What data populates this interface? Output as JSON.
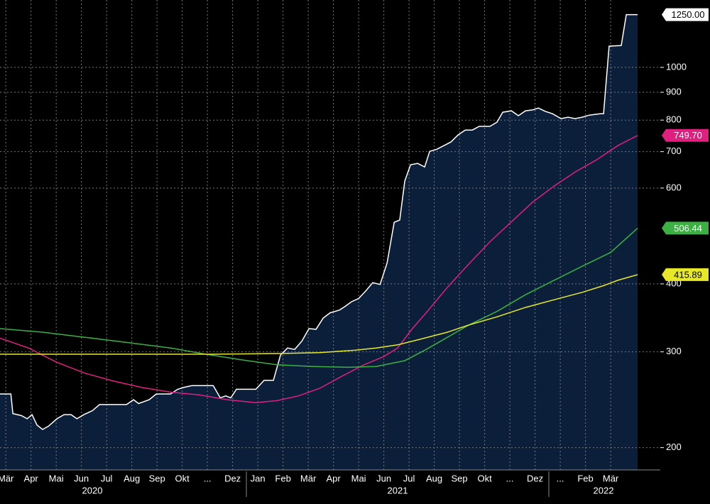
{
  "chart_data": {
    "type": "line",
    "log_scale": true,
    "grid": true,
    "area_color": "#0b1f3a",
    "xlim": [
      -0.23,
      25.97
    ],
    "ylim": [
      182,
      1330
    ],
    "yticks": [
      200,
      300,
      400,
      600,
      700,
      800,
      900,
      1000
    ],
    "xticks": [
      {
        "value": 0,
        "label": "Mär"
      },
      {
        "value": 1,
        "label": "Apr"
      },
      {
        "value": 2,
        "label": "Mai"
      },
      {
        "value": 3,
        "label": "Jun"
      },
      {
        "value": 4,
        "label": "Jul"
      },
      {
        "value": 5,
        "label": "Aug"
      },
      {
        "value": 6,
        "label": "Sep"
      },
      {
        "value": 7,
        "label": "Okt"
      },
      {
        "value": 8,
        "label": "..."
      },
      {
        "value": 9,
        "label": "Dez"
      },
      {
        "value": 10,
        "label": "Jan"
      },
      {
        "value": 11,
        "label": "Feb"
      },
      {
        "value": 12,
        "label": "Mär"
      },
      {
        "value": 13,
        "label": "Apr"
      },
      {
        "value": 14,
        "label": "Mai"
      },
      {
        "value": 15,
        "label": "Jun"
      },
      {
        "value": 16,
        "label": "Jul"
      },
      {
        "value": 17,
        "label": "Aug"
      },
      {
        "value": 18,
        "label": "Sep"
      },
      {
        "value": 19,
        "label": "Okt"
      },
      {
        "value": 20,
        "label": "..."
      },
      {
        "value": 21,
        "label": "Dez"
      },
      {
        "value": 22,
        "label": "..."
      },
      {
        "value": 23,
        "label": "Feb"
      },
      {
        "value": 24,
        "label": "Mär"
      }
    ],
    "year_labels": [
      "2020",
      "2021",
      "2022"
    ],
    "series": [
      {
        "color": "#ffffff",
        "label_text": "#000000",
        "fill": true,
        "x": [
          -0.23,
          0.2,
          0.28,
          0.62,
          0.85,
          1.04,
          1.24,
          1.46,
          1.69,
          2.03,
          2.31,
          2.59,
          2.82,
          3.1,
          3.44,
          3.72,
          4.28,
          4.79,
          5.07,
          5.27,
          5.69,
          5.97,
          6.54,
          6.82,
          7.04,
          7.38,
          7.66,
          8.23,
          8.51,
          8.73,
          8.93,
          9.15,
          9.63,
          9.92,
          10.25,
          10.62,
          10.9,
          11.18,
          11.46,
          11.75,
          12.03,
          12.31,
          12.59,
          12.87,
          13.24,
          13.44,
          13.72,
          14.0,
          14.28,
          14.56,
          14.85,
          15.13,
          15.41,
          15.63,
          15.83,
          16.06,
          16.34,
          16.62,
          16.82,
          17.1,
          17.38,
          17.66,
          17.94,
          18.23,
          18.51,
          18.79,
          19.21,
          19.49,
          19.72,
          20.06,
          20.34,
          20.62,
          20.9,
          21.13,
          21.41,
          21.69,
          22.03,
          22.31,
          22.59,
          22.87,
          23.15,
          23.58,
          23.72,
          23.94,
          24.42,
          24.62,
          25.07
        ],
        "values": [
          251,
          251,
          231,
          229,
          226,
          230,
          220,
          216,
          219,
          226,
          230,
          230,
          226,
          230,
          234,
          240,
          240,
          240,
          245,
          241,
          245,
          251,
          251,
          256,
          258,
          260,
          260,
          260,
          247,
          249,
          247,
          256,
          256,
          256,
          266,
          266,
          296,
          305,
          303,
          314,
          331,
          330,
          346,
          354,
          358,
          363,
          371,
          376,
          388,
          402,
          399,
          437,
          519,
          524,
          618,
          662,
          666,
          656,
          701,
          707,
          718,
          729,
          751,
          767,
          767,
          779,
          779,
          793,
          827,
          832,
          815,
          832,
          835,
          842,
          830,
          822,
          805,
          810,
          805,
          810,
          817,
          822,
          822,
          1094,
          1097,
          1250,
          1250
        ],
        "value_labels": [
          null,
          null,
          null,
          null,
          null,
          null,
          null,
          null,
          null,
          null,
          null,
          null,
          null,
          null,
          null,
          null,
          null,
          null,
          null,
          null,
          null,
          null,
          null,
          null,
          null,
          null,
          null,
          null,
          null,
          null,
          null,
          null,
          null,
          null,
          null,
          null,
          null,
          null,
          null,
          null,
          null,
          null,
          null,
          null,
          null,
          null,
          null,
          null,
          null,
          null,
          null,
          null,
          null,
          null,
          null,
          null,
          null,
          null,
          null,
          null,
          null,
          null,
          null,
          null,
          null,
          null,
          null,
          null,
          null,
          null,
          null,
          null,
          null,
          null,
          null,
          null,
          null,
          null,
          null,
          null,
          null,
          null,
          null,
          null,
          null,
          null,
          "1250.00"
        ]
      },
      {
        "color": "#e0207f",
        "label_text": "#ffffff",
        "x": [
          -0.23,
          0.9,
          2.03,
          3.15,
          4.28,
          5.41,
          6.54,
          7.66,
          8.79,
          9.92,
          10.76,
          11.61,
          12.45,
          13.3,
          14.14,
          14.99,
          15.55,
          16.11,
          16.68,
          17.52,
          18.37,
          19.21,
          20.06,
          20.9,
          21.75,
          22.59,
          23.44,
          24.28,
          25.07
        ],
        "values": [
          318,
          305,
          287,
          274,
          265,
          258,
          253,
          250,
          245,
          242,
          244,
          249,
          257,
          270,
          283,
          294,
          305,
          330,
          354,
          394,
          435,
          478,
          520,
          565,
          605,
          642,
          676,
          718,
          749.7
        ],
        "value_labels": [
          null,
          null,
          null,
          null,
          null,
          null,
          null,
          null,
          null,
          null,
          null,
          null,
          null,
          null,
          null,
          null,
          null,
          null,
          null,
          null,
          null,
          null,
          null,
          null,
          null,
          null,
          null,
          null,
          "749.70"
        ]
      },
      {
        "color": "#3cb043",
        "label_text": "#ffffff",
        "x": [
          -0.23,
          1.46,
          3.15,
          4.85,
          6.54,
          7.94,
          9.35,
          10.76,
          12.17,
          13.58,
          14.7,
          15.83,
          16.68,
          17.52,
          18.37,
          19.49,
          20.62,
          21.75,
          22.87,
          24.0,
          25.07
        ],
        "values": [
          331,
          326,
          319,
          312,
          305,
          297,
          290,
          284,
          282,
          281,
          282,
          289,
          303,
          319,
          336,
          356,
          382,
          406,
          431,
          457,
          506.44
        ]
      },
      {
        "color": "#e8e82a",
        "label_text": "#000000",
        "x": [
          -0.23,
          2.59,
          5.41,
          8.23,
          11.04,
          12.45,
          13.86,
          14.7,
          15.55,
          16.39,
          17.52,
          18.37,
          19.49,
          20.62,
          21.75,
          22.87,
          23.72,
          24.28,
          25.07
        ],
        "values": [
          297,
          297,
          297,
          297,
          298,
          299,
          302,
          305,
          309,
          316,
          326,
          336,
          348,
          362,
          374,
          386,
          397,
          406,
          415.89
        ]
      }
    ]
  }
}
